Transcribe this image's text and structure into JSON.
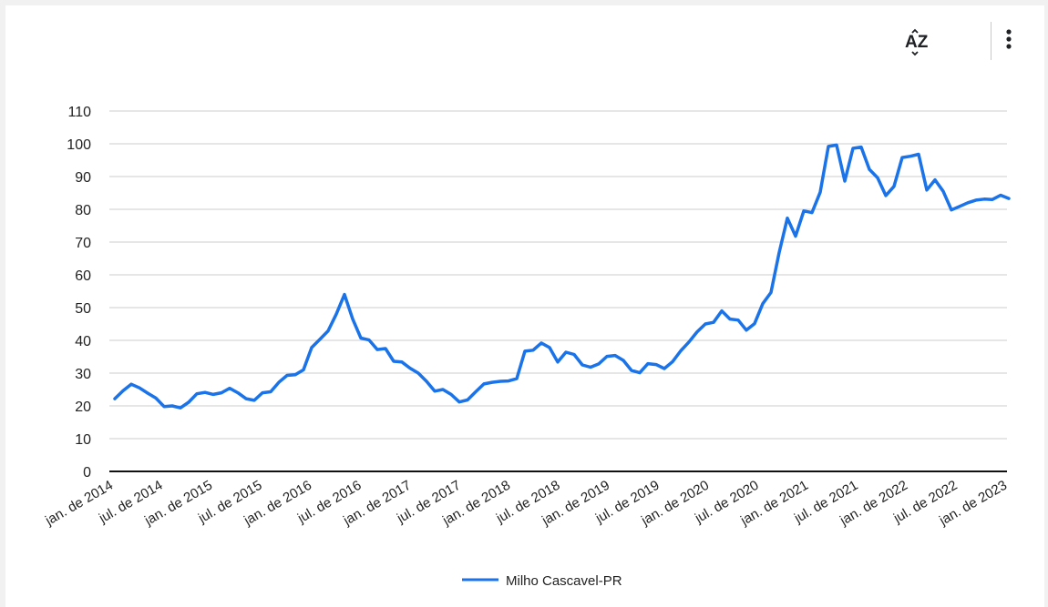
{
  "toolbar": {
    "sort_icon": "sort-az-icon",
    "menu_icon": "more-vert-icon",
    "sort_label": "AZ"
  },
  "chart_data": {
    "type": "line",
    "title": "",
    "xlabel": "",
    "ylabel": "",
    "ylim": [
      0,
      110
    ],
    "yticks": [
      "0",
      "10",
      "20",
      "30",
      "40",
      "50",
      "60",
      "70",
      "80",
      "90",
      "100",
      "110"
    ],
    "xtick_labels": [
      "jan. de 2014",
      "jul. de 2014",
      "jan. de 2015",
      "jul. de 2015",
      "jan. de 2016",
      "jul. de 2016",
      "jan. de 2017",
      "jul. de 2017",
      "jan. de 2018",
      "jul. de 2018",
      "jan. de 2019",
      "jul. de 2019",
      "jan. de 2020",
      "jul. de 2020",
      "jan. de 2021",
      "jul. de 2021",
      "jan. de 2022",
      "jul. de 2022",
      "jan. de 2023"
    ],
    "grid": true,
    "legend_position": "bottom",
    "series": [
      {
        "name": "Milho Cascavel-PR",
        "color": "#1a73e8",
        "values": [
          22.2,
          24.6,
          26.6,
          25.5,
          23.9,
          22.4,
          19.8,
          20.0,
          19.4,
          21.1,
          23.7,
          24.1,
          23.5,
          24.0,
          25.4,
          24.0,
          22.2,
          21.7,
          24.0,
          24.3,
          27.2,
          29.3,
          29.5,
          31.0,
          37.8,
          40.3,
          42.9,
          48.0,
          54.0,
          46.5,
          40.7,
          40.1,
          37.2,
          37.5,
          33.6,
          33.4,
          31.5,
          30.0,
          27.5,
          24.5,
          25.0,
          23.5,
          21.2,
          21.8,
          24.3,
          26.7,
          27.2,
          27.5,
          27.6,
          28.3,
          36.7,
          37.0,
          39.2,
          37.8,
          33.4,
          36.4,
          35.7,
          32.5,
          31.8,
          32.8,
          35.1,
          35.4,
          33.9,
          30.8,
          30.1,
          32.9,
          32.6,
          31.4,
          33.5,
          36.8,
          39.5,
          42.6,
          45.0,
          45.5,
          49.0,
          46.5,
          46.2,
          43.1,
          45.1,
          51.2,
          54.6,
          66.8,
          77.3,
          71.8,
          79.5,
          79.0,
          85.2,
          99.2,
          99.6,
          88.6,
          98.6,
          99.0,
          92.2,
          89.6,
          84.2,
          87.0,
          95.8,
          96.2,
          96.8,
          85.9,
          89.0,
          85.5,
          79.8,
          80.9,
          82.0,
          82.8,
          83.1,
          83.0,
          84.3,
          83.3
        ]
      }
    ]
  }
}
